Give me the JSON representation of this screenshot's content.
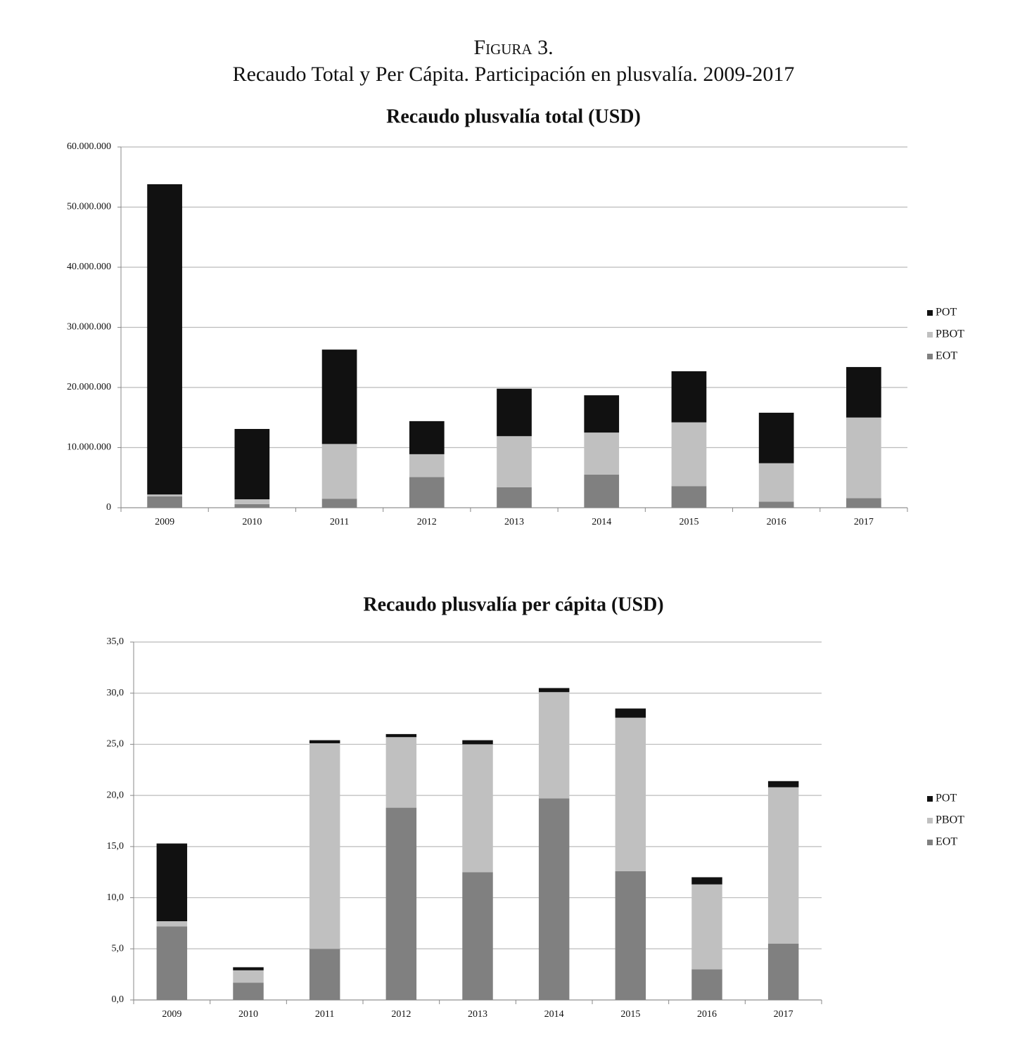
{
  "figure": {
    "label": "Figura 3.",
    "title": "Recaudo Total y Per Cápita. Participación en plusvalía. 2009-2017"
  },
  "chart_data": [
    {
      "type": "bar",
      "stacked": true,
      "title": "Recaudo plusvalía total (USD)",
      "categories": [
        "2009",
        "2010",
        "2011",
        "2012",
        "2013",
        "2014",
        "2015",
        "2016",
        "2017"
      ],
      "series": [
        {
          "name": "EOT",
          "color": "#808080",
          "values": [
            1900000,
            600000,
            1500000,
            5100000,
            3400000,
            5500000,
            3600000,
            1000000,
            1600000
          ]
        },
        {
          "name": "PBOT",
          "color": "#c0c0c0",
          "values": [
            300000,
            800000,
            9100000,
            3800000,
            8500000,
            7000000,
            10600000,
            6400000,
            13400000
          ]
        },
        {
          "name": "POT",
          "color": "#111111",
          "values": [
            51600000,
            11700000,
            15700000,
            5500000,
            7900000,
            6200000,
            8500000,
            8400000,
            8400000
          ]
        }
      ],
      "ylim": [
        0,
        60000000
      ],
      "yticks": [
        0,
        {
          "value": 10000000,
          "label": "10.000.000"
        },
        {
          "value": 20000000,
          "label": "20.000.000"
        },
        {
          "value": 30000000,
          "label": "30.000.000"
        },
        {
          "value": 40000000,
          "label": "40.000.000"
        },
        {
          "value": 50000000,
          "label": "50.000.000"
        },
        {
          "value": 60000000,
          "label": "60.000.000"
        }
      ],
      "grid": true,
      "legend": "right"
    },
    {
      "type": "bar",
      "stacked": true,
      "title": "Recaudo plusvalía per cápita (USD)",
      "categories": [
        "2009",
        "2010",
        "2011",
        "2012",
        "2013",
        "2014",
        "2015",
        "2016",
        "2017"
      ],
      "series": [
        {
          "name": "EOT",
          "color": "#808080",
          "values": [
            7.2,
            1.7,
            5.0,
            18.8,
            12.5,
            19.7,
            12.6,
            3.0,
            5.5
          ]
        },
        {
          "name": "PBOT",
          "color": "#c0c0c0",
          "values": [
            0.5,
            1.2,
            20.1,
            6.9,
            12.5,
            10.4,
            15.0,
            8.3,
            15.3
          ]
        },
        {
          "name": "POT",
          "color": "#111111",
          "values": [
            7.6,
            0.3,
            0.3,
            0.3,
            0.4,
            0.4,
            0.9,
            0.7,
            0.6
          ]
        }
      ],
      "ylim": [
        0,
        35
      ],
      "yticks": [
        {
          "value": 0,
          "label": "0,0"
        },
        {
          "value": 5,
          "label": "5,0"
        },
        {
          "value": 10,
          "label": "10,0"
        },
        {
          "value": 15,
          "label": "15,0"
        },
        {
          "value": 20,
          "label": "20,0"
        },
        {
          "value": 25,
          "label": "25,0"
        },
        {
          "value": 30,
          "label": "30,0"
        },
        {
          "value": 35,
          "label": "35,0"
        }
      ],
      "grid": true,
      "legend": "right"
    }
  ]
}
